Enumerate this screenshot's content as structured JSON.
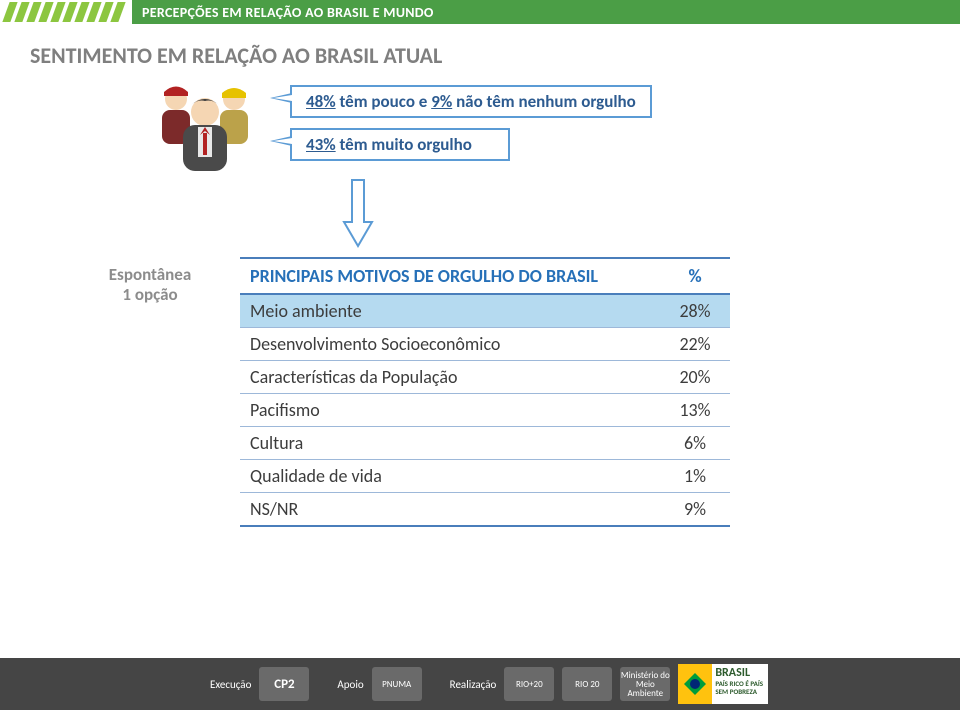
{
  "header": {
    "ribbon": "PERCEPÇÕES EM RELAÇÃO AO BRASIL E MUNDO"
  },
  "subtitle": "SENTIMENTO EM RELAÇÃO AO BRASIL ATUAL",
  "callouts": {
    "line1_a": "48%",
    "line1_b": "têm pouco e",
    "line1_c": "9%",
    "line1_d": "não têm nenhum orgulho",
    "line2_a": "43%",
    "line2_b": "têm muito orgulho"
  },
  "side": {
    "l1": "Espontânea",
    "l2": "1 opção"
  },
  "table": {
    "col_label": "PRINCIPAIS MOTIVOS DE ORGULHO DO BRASIL",
    "col_pct": "%",
    "rows": [
      {
        "label": "Meio ambiente",
        "pct": "28%",
        "hi": true
      },
      {
        "label": "Desenvolvimento Socioeconômico",
        "pct": "22%",
        "hi": false
      },
      {
        "label": "Características da População",
        "pct": "20%",
        "hi": false
      },
      {
        "label": "Pacifismo",
        "pct": "13%",
        "hi": false
      },
      {
        "label": "Cultura",
        "pct": "6%",
        "hi": false
      },
      {
        "label": "Qualidade de vida",
        "pct": "1%",
        "hi": false
      },
      {
        "label": "NS/NR",
        "pct": "9%",
        "hi": false
      }
    ]
  },
  "footer": {
    "exec": "Execução",
    "apoio": "Apoio",
    "realiz": "Realização",
    "logo_cp2": "CP2",
    "logo_pnuma": "PNUMA",
    "logo_rio": "RIO+20",
    "logo_rio2": "RIO 20",
    "logo_mma": "Ministério do Meio Ambiente",
    "brasil_big": "BRASIL",
    "brasil_small": "PAÍS RICO É PAÍS SEM POBREZA"
  },
  "colors": {
    "green_stripe": "#8cc640",
    "green_ribbon": "#4b9e46",
    "blue_border": "#5b9bd5",
    "blue_text": "#2d5b90",
    "blue_header": "#2670b8",
    "blue_row": "#b5daf0",
    "gray_sub": "#7f7f7f",
    "footer_bg": "#454545"
  }
}
